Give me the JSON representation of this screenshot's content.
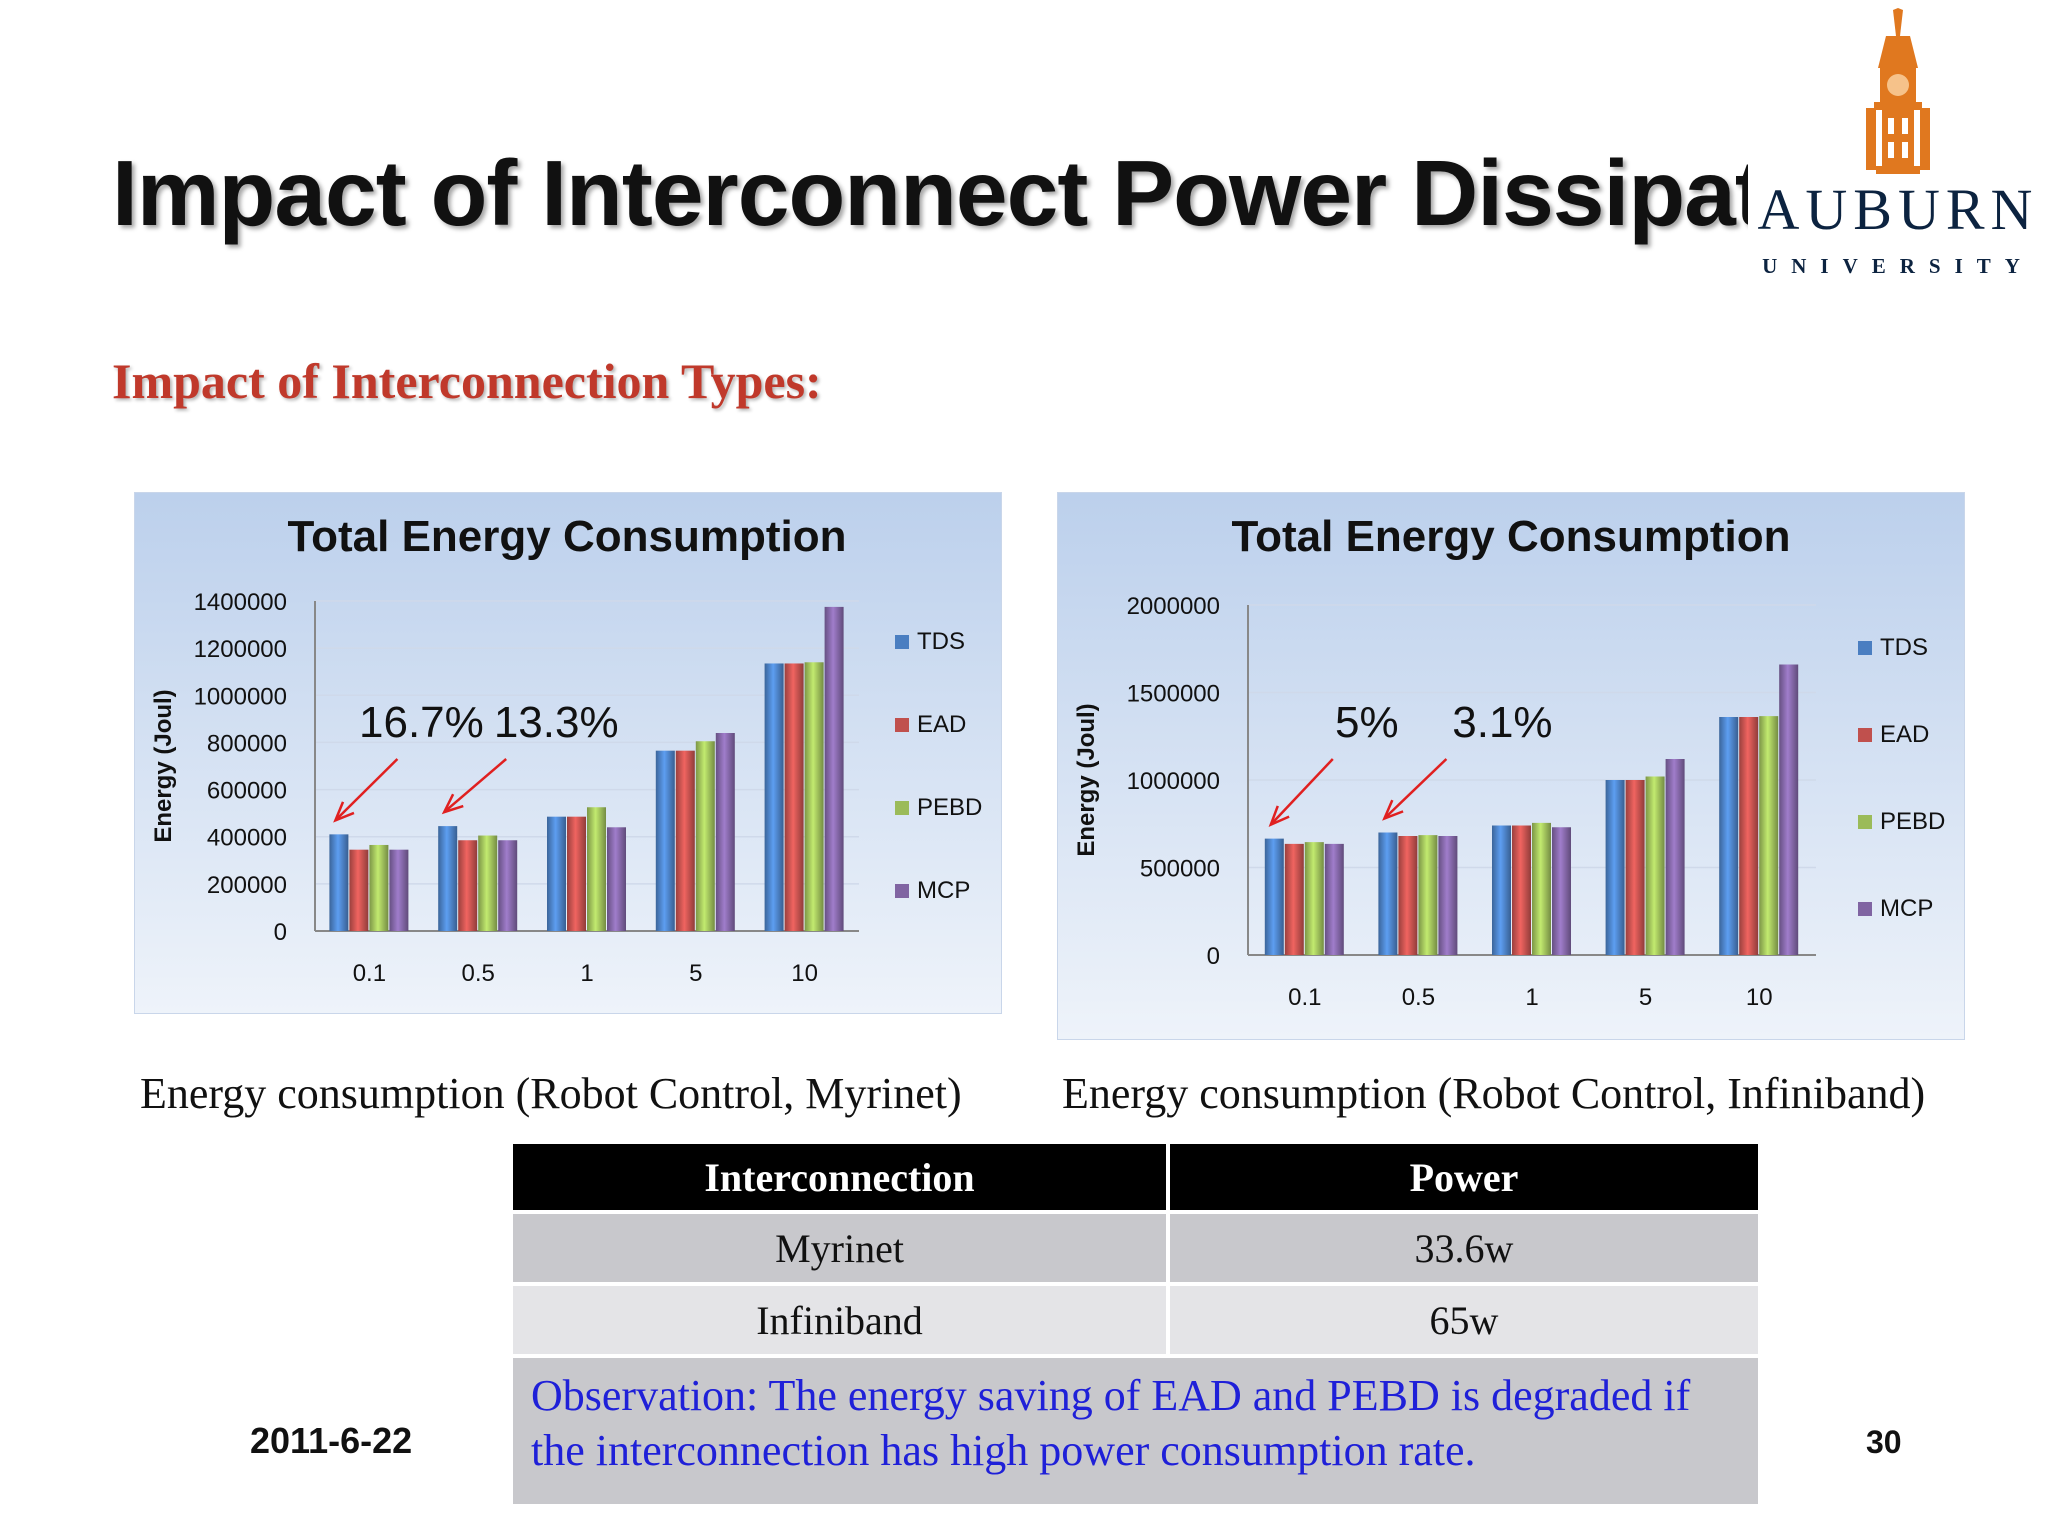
{
  "slide": {
    "title": "Impact of Interconnect Power Dissipati",
    "subtitle": "Impact of Interconnection Types:",
    "logo": {
      "name": "AUBURN",
      "sub": "UNIVERSITY"
    },
    "date": "2011-6-22",
    "page_number": "30"
  },
  "captions": {
    "left": "Energy consumption (Robot Control, Myrinet)",
    "right": "Energy consumption (Robot Control, Infiniband)"
  },
  "table": {
    "headers": [
      "Interconnection",
      "Power"
    ],
    "rows": [
      [
        "Myrinet",
        "33.6w"
      ],
      [
        "Infiniband",
        "65w"
      ]
    ],
    "observation": "Observation: The energy saving of EAD and PEBD is degraded if the interconnection has high power consumption rate."
  },
  "colors": {
    "TDS": "#4a7ec1",
    "EAD": "#c0504d",
    "PEBD": "#9bbb59",
    "MCP": "#8064a2",
    "arrow": "#e02020"
  },
  "chart_data": [
    {
      "type": "bar",
      "title": "Total Energy Consumption",
      "xlabel": "",
      "ylabel": "Energy (Joul)",
      "ylim": [
        0,
        1400000
      ],
      "yticks": [
        "0",
        "200000",
        "400000",
        "600000",
        "800000",
        "1000000",
        "1200000",
        "1400000"
      ],
      "categories": [
        "0.1",
        "0.5",
        "1",
        "5",
        "10"
      ],
      "series": [
        {
          "name": "TDS",
          "values": [
            410000,
            445000,
            485000,
            765000,
            1135000
          ]
        },
        {
          "name": "EAD",
          "values": [
            345000,
            385000,
            485000,
            765000,
            1135000
          ]
        },
        {
          "name": "PEBD",
          "values": [
            365000,
            405000,
            525000,
            805000,
            1140000
          ]
        },
        {
          "name": "MCP",
          "values": [
            345000,
            385000,
            440000,
            840000,
            1375000
          ]
        }
      ],
      "annotations": [
        {
          "text": "16.7%",
          "category": "0.1"
        },
        {
          "text": "13.3%",
          "category": "0.5"
        }
      ],
      "legend": "right"
    },
    {
      "type": "bar",
      "title": "Total Energy Consumption",
      "xlabel": "",
      "ylabel": "Energy (Joul)",
      "ylim": [
        0,
        2000000
      ],
      "yticks": [
        "0",
        "500000",
        "1000000",
        "1500000",
        "2000000"
      ],
      "categories": [
        "0.1",
        "0.5",
        "1",
        "5",
        "10"
      ],
      "series": [
        {
          "name": "TDS",
          "values": [
            665000,
            700000,
            740000,
            1000000,
            1360000
          ]
        },
        {
          "name": "EAD",
          "values": [
            635000,
            680000,
            740000,
            1000000,
            1360000
          ]
        },
        {
          "name": "PEBD",
          "values": [
            645000,
            685000,
            755000,
            1020000,
            1365000
          ]
        },
        {
          "name": "MCP",
          "values": [
            635000,
            680000,
            730000,
            1120000,
            1660000
          ]
        }
      ],
      "annotations": [
        {
          "text": "5%",
          "category": "0.1"
        },
        {
          "text": "3.1%",
          "category": "0.5"
        }
      ],
      "legend": "right"
    }
  ]
}
